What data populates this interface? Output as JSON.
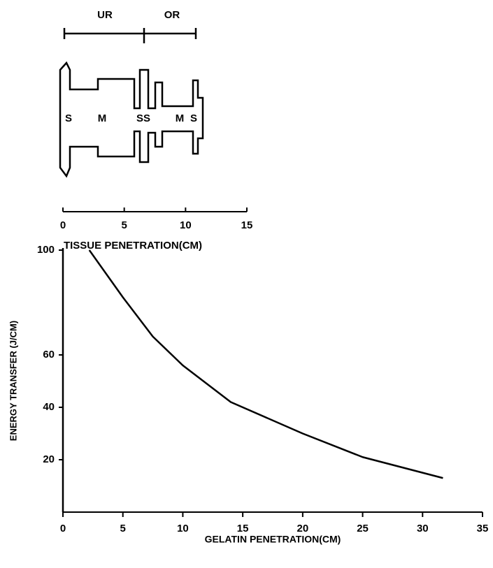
{
  "diagram": {
    "top_labels": [
      "UR",
      "OR"
    ],
    "region_labels": [
      "S",
      "M",
      "SS",
      "M",
      "S"
    ],
    "axis_ticks": [
      0,
      5,
      10,
      15
    ],
    "axis_label": "TISSUE PENETRATION(CM)"
  },
  "chart_data": {
    "type": "line",
    "x_label": "GELATIN PENETRATION(CM)",
    "y_label": "ENERGY TRANSFER (J/CM)",
    "x": [
      2.2,
      5,
      7.5,
      10,
      14,
      20,
      25,
      31.7
    ],
    "values": [
      100,
      82,
      67,
      56,
      42,
      30,
      21,
      13
    ],
    "color": "#000000",
    "xlim": [
      0,
      35
    ],
    "xticks": [
      0,
      5,
      10,
      15,
      20,
      25,
      30,
      35
    ],
    "ylim": [
      0,
      100
    ],
    "yticks": [
      20,
      40,
      60,
      100
    ]
  }
}
